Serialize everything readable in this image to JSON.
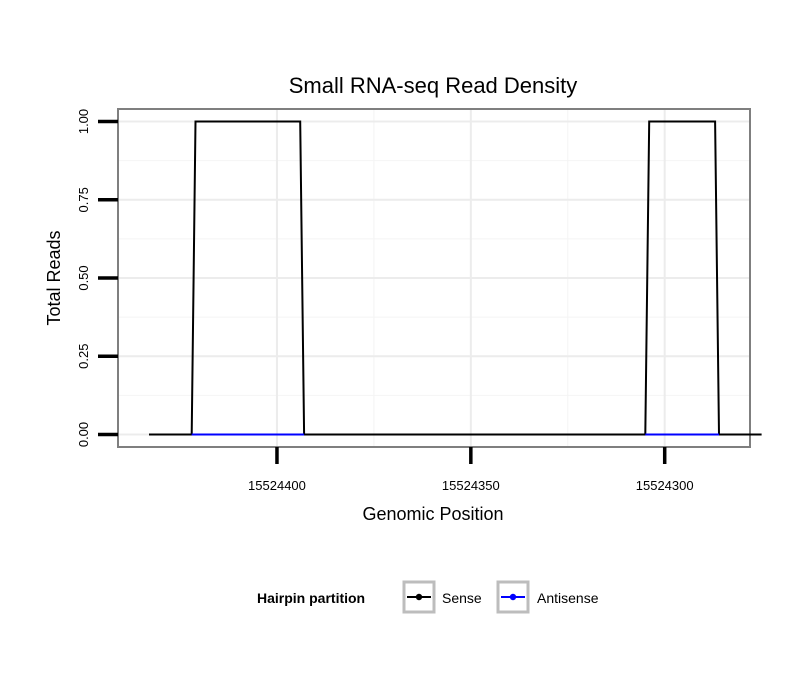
{
  "chart_data": {
    "type": "line",
    "title": "Small RNA-seq Read Density",
    "xlabel": "Genomic Position",
    "ylabel": "Total Reads",
    "x_reversed": true,
    "xlim": [
      15524441,
      15524278
    ],
    "ylim": [
      -0.04,
      1.04
    ],
    "x_ticks": [
      15524400,
      15524350,
      15524300
    ],
    "x_tick_labels": [
      "15524400",
      "15524350",
      "15524300"
    ],
    "y_ticks": [
      0,
      0.25,
      0.5,
      0.75,
      1
    ],
    "y_tick_labels": [
      "0.00",
      "0.25",
      "0.50",
      "0.75",
      "1.00"
    ],
    "grid": true,
    "legend": {
      "title": "Hairpin partition",
      "position": "bottom",
      "entries": [
        {
          "label": "Sense",
          "color": "#000000"
        },
        {
          "label": "Antisense",
          "color": "#0000ff"
        }
      ]
    },
    "series": [
      {
        "name": "Sense",
        "color": "#000000",
        "x": [
          15524433,
          15524422,
          15524421,
          15524394,
          15524393,
          15524305,
          15524304,
          15524287,
          15524286,
          15524275
        ],
        "y": [
          0,
          0,
          1,
          1,
          0,
          0,
          1,
          1,
          0,
          0
        ]
      },
      {
        "name": "Antisense",
        "color": "#0000ff",
        "segments": [
          {
            "x": [
              15524422,
              15524393
            ],
            "y": [
              0,
              0
            ]
          },
          {
            "x": [
              15524305,
              15524286
            ],
            "y": [
              0,
              0
            ]
          }
        ]
      }
    ]
  }
}
